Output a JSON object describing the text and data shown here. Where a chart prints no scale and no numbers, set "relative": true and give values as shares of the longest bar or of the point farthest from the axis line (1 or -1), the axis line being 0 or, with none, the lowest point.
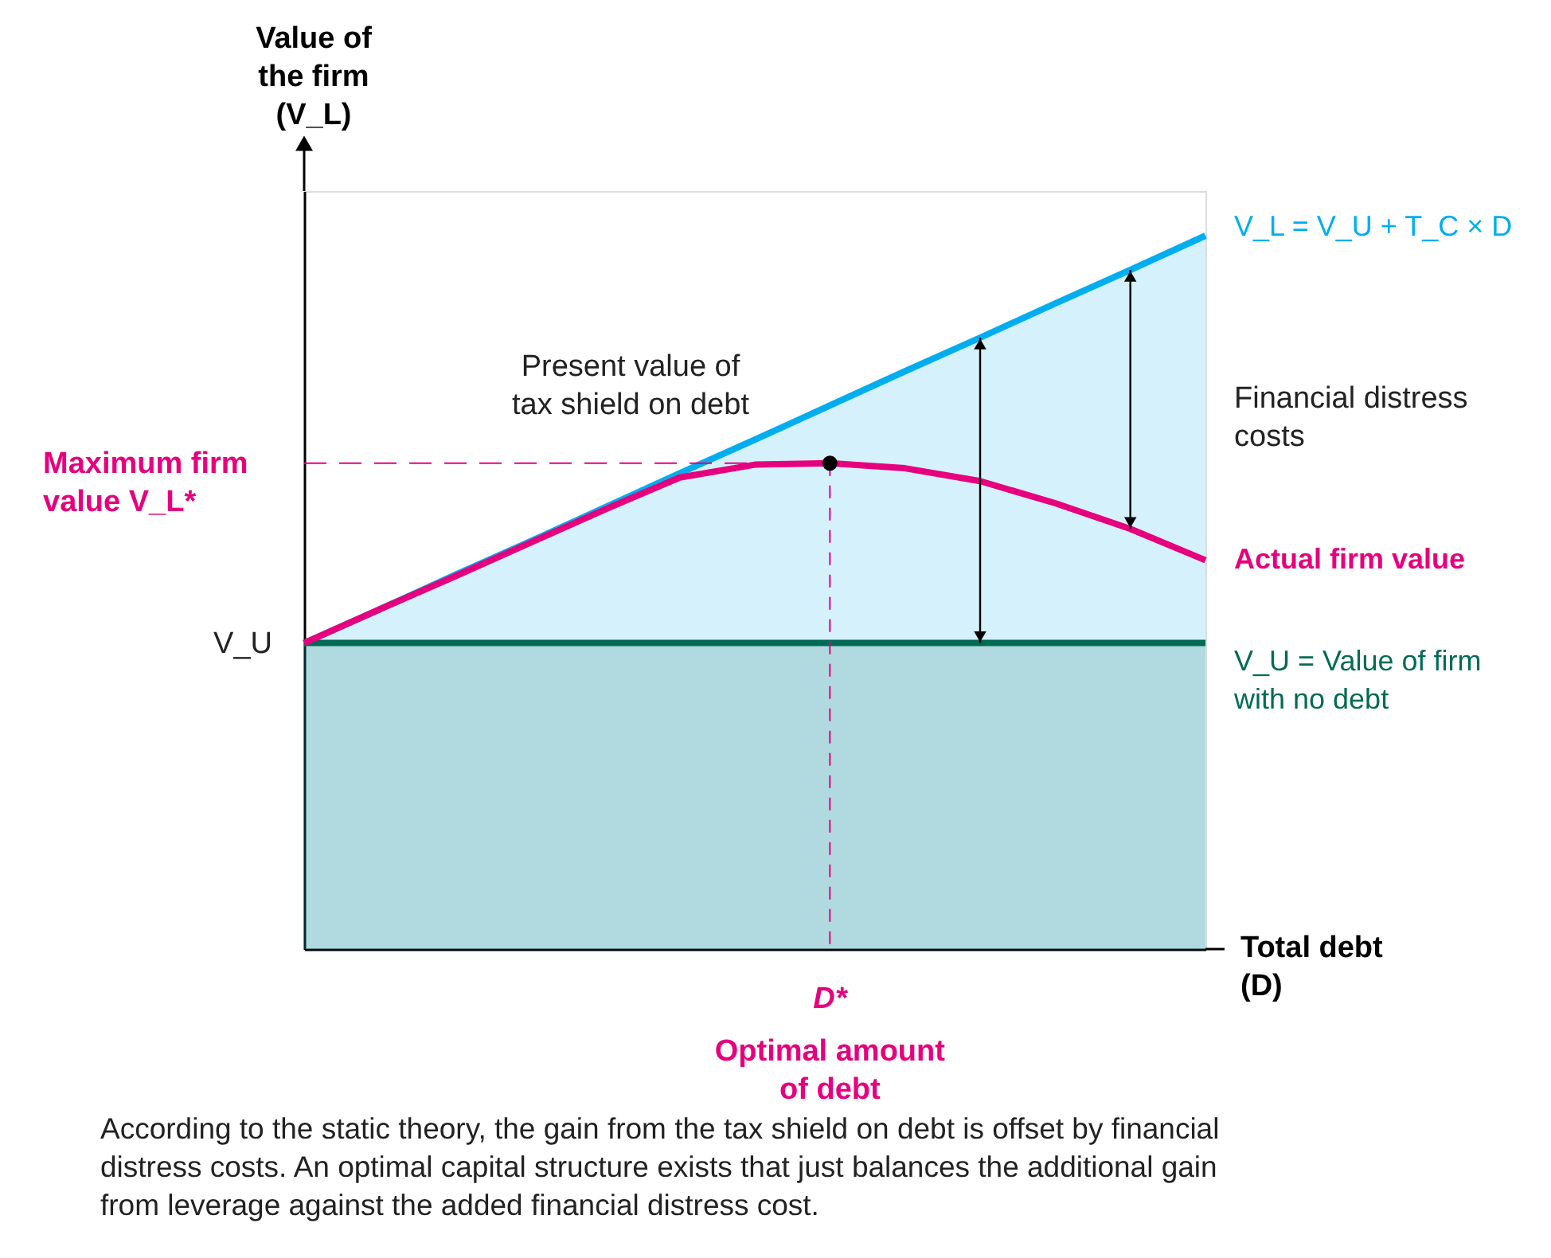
{
  "chart_data": {
    "type": "line",
    "relative": true,
    "categories": [
      null,
      null,
      null,
      null,
      null,
      null,
      null,
      null,
      null,
      null,
      null,
      null,
      null
    ],
    "ylabel": "Value of the firm (V_L)",
    "xlabel": "Total debt (D)",
    "series": [
      {
        "name": "V_L = V_U + T_C × D",
        "color": "#00aeef",
        "type": "area",
        "values": [
          0.429,
          0.476,
          0.524,
          0.571,
          0.619,
          0.667,
          0.714,
          0.762,
          0.81,
          0.857,
          0.905,
          0.952,
          1
        ]
      },
      {
        "name": "V_U = Value of firm with no debt",
        "color": "#006b54",
        "type": "area",
        "values": [
          0.429,
          0.429,
          0.429,
          0.429,
          0.429,
          0.429,
          0.429,
          0.429,
          0.429,
          0.429,
          0.429,
          0.429,
          0.429
        ]
      },
      {
        "name": "Actual firm value",
        "color": "#e6007e",
        "values": [
          0.429,
          0.476,
          0.522,
          0.569,
          0.616,
          0.661,
          0.679,
          0.681,
          0.674,
          0.656,
          0.625,
          0.589,
          0.545
        ]
      }
    ],
    "ref_lines": [
      {
        "axis": "y",
        "value": 0.681,
        "label": "Maximum firm value V_L*",
        "color": "#e6007e",
        "line_style": "dashed"
      }
    ],
    "annotations": [
      "Present value of tax shield on debt",
      "Financial distress costs",
      "V_U",
      "D*",
      "Optimal amount of debt",
      "According to the static theory, the gain from the tax shield on debt is offset by financial distress costs. An optimal capital structure exists that just balances the additional gain from leverage against the added financial distress cost."
    ]
  }
}
